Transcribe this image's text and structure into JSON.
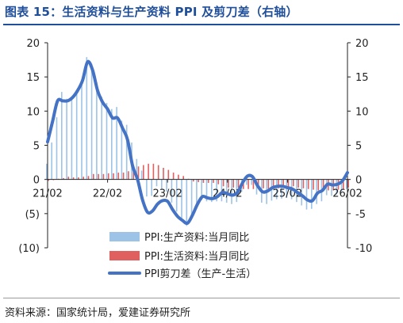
{
  "title": "图表 15：生活资料与生产资料 PPI 及剪刀差（右轴）",
  "source": "资料来源：国家统计局，爱建证券研究所",
  "colors": {
    "title": "#1f4e9a",
    "production": "#9dc3e6",
    "living": "#e06060",
    "scissors": "#4472c4",
    "negative_label": "#c00000"
  },
  "chart_data": {
    "type": "bar",
    "x_tick_labels": [
      "21/02",
      "22/02",
      "23/02",
      "24/02",
      "25/02",
      "26/02"
    ],
    "x_ticks_month_index": [
      0,
      12,
      24,
      36,
      48,
      60
    ],
    "left_axis": {
      "ylim": [
        -10,
        20
      ],
      "ticks": [
        20,
        15,
        10,
        5,
        0,
        -5,
        -10
      ],
      "tick_labels": [
        "20",
        "15",
        "10",
        "5",
        "0",
        "(5)",
        "(10)"
      ]
    },
    "right_axis": {
      "ylim": [
        -10,
        20
      ],
      "ticks": [
        20,
        15,
        10,
        5,
        0,
        -5,
        -10
      ],
      "tick_labels": [
        "20",
        "15",
        "10",
        "5",
        "0",
        "-5",
        "-10"
      ]
    },
    "months": [
      "21/02",
      "21/03",
      "21/04",
      "21/05",
      "21/06",
      "21/07",
      "21/08",
      "21/09",
      "21/10",
      "21/11",
      "21/12",
      "22/01",
      "22/02",
      "22/03",
      "22/04",
      "22/05",
      "22/06",
      "22/07",
      "22/08",
      "22/09",
      "22/10",
      "22/11",
      "22/12",
      "23/01",
      "23/02",
      "23/03",
      "23/04",
      "23/05",
      "23/06",
      "23/07",
      "23/08",
      "23/09",
      "23/10",
      "23/11",
      "23/12",
      "24/01",
      "24/02",
      "24/03",
      "24/04",
      "24/05",
      "24/06",
      "24/07",
      "24/08",
      "24/09",
      "24/10",
      "24/11",
      "24/12",
      "25/01",
      "25/02",
      "25/03",
      "25/04",
      "25/05",
      "25/06",
      "25/07",
      "25/08",
      "25/09",
      "25/10",
      "25/11",
      "25/12",
      "26/01",
      "26/02"
    ],
    "series": [
      {
        "name": "PPI:生产资料:当月同比",
        "kind": "bar",
        "axis": "left",
        "values": [
          2.3,
          5.4,
          9.1,
          12.8,
          11.8,
          12.0,
          12.7,
          14.3,
          17.9,
          16.9,
          14.2,
          12.1,
          11.2,
          10.3,
          10.6,
          8.6,
          8.0,
          5.4,
          3.0,
          1.3,
          -2.5,
          -2.4,
          -1.0,
          -1.4,
          -1.8,
          -3.4,
          -4.7,
          -6.1,
          -6.8,
          -5.5,
          -3.7,
          -3.0,
          -3.2,
          -3.3,
          -3.2,
          -3.2,
          -3.4,
          -3.6,
          -3.3,
          -1.8,
          -0.8,
          -0.8,
          -2.2,
          -3.4,
          -3.6,
          -3.1,
          -2.9,
          -2.8,
          -2.7,
          -2.9,
          -3.3,
          -3.8,
          -4.4,
          -4.3,
          -3.6,
          -3.2,
          -2.3,
          -2.4,
          -2.2,
          -1.7,
          -1.4
        ]
      },
      {
        "name": "PPI:生活资料:当月同比",
        "kind": "bar",
        "axis": "left",
        "values": [
          -0.2,
          -0.1,
          0.1,
          0.2,
          0.4,
          0.3,
          0.3,
          0.4,
          0.5,
          0.8,
          0.8,
          0.8,
          0.9,
          0.9,
          1.0,
          1.0,
          1.2,
          1.6,
          1.9,
          2.1,
          2.3,
          2.3,
          2.1,
          1.7,
          1.4,
          1.0,
          0.7,
          0.5,
          0.1,
          -0.3,
          -0.4,
          -0.5,
          -0.5,
          -0.5,
          -0.7,
          -1.0,
          -1.2,
          -1.2,
          -1.2,
          -1.4,
          -1.4,
          -1.4,
          -1.3,
          -1.3,
          -1.4,
          -1.4,
          -1.3,
          -1.2,
          -1.1,
          -1.0,
          -1.2,
          -1.3,
          -1.4,
          -1.5,
          -1.6,
          -1.6,
          -1.6,
          -1.6,
          -1.5,
          -1.4,
          -1.2
        ]
      },
      {
        "name": "PPI剪刀差（生产-生活）",
        "kind": "line",
        "axis": "right",
        "values": [
          5.5,
          8.5,
          11.5,
          11.5,
          11.5,
          12.0,
          13.0,
          14.5,
          17.2,
          16.0,
          13.0,
          11.3,
          10.3,
          9.0,
          9.0,
          7.5,
          5.8,
          2.0,
          0.0,
          -3.0,
          -4.8,
          -4.6,
          -3.6,
          -3.1,
          -3.2,
          -4.4,
          -5.4,
          -6.0,
          -6.4,
          -5.2,
          -3.6,
          -2.5,
          -2.7,
          -2.8,
          -2.5,
          -1.9,
          -2.1,
          -2.3,
          -1.9,
          -0.5,
          0.5,
          0.4,
          -0.9,
          -1.8,
          -1.7,
          -1.2,
          -1.0,
          -1.0,
          -1.2,
          -1.4,
          -1.9,
          -2.4,
          -3.0,
          -3.1,
          -2.0,
          -1.6,
          -0.7,
          -0.8,
          -0.7,
          -0.2,
          1.0
        ]
      }
    ],
    "legend": [
      "PPI:生产资料:当月同比",
      "PPI:生活资料:当月同比",
      "PPI剪刀差（生产-生活）"
    ],
    "legend_position": "bottom-center",
    "grid": false
  }
}
